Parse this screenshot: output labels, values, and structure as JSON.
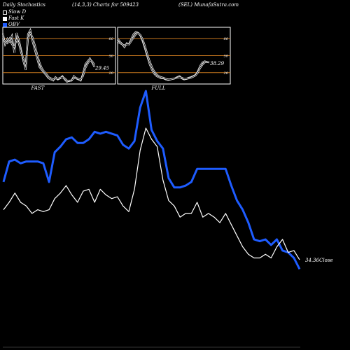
{
  "header": {
    "left": "Daily Stochastics",
    "params": "(14,3,3) Charts for 509423",
    "right": "(SEL) MunafaSutra.com"
  },
  "legend": [
    {
      "label": "Slow  D",
      "color": "#000000"
    },
    {
      "label": "Fast K",
      "color": "#ffffff"
    },
    {
      "label": "OBV",
      "color": "#1e5cff"
    }
  ],
  "chart_data": [
    {
      "type": "line",
      "title": "FAST",
      "last_value_label": "29.45",
      "ylim": [
        0,
        100
      ],
      "yticks": [
        20,
        50,
        80
      ],
      "series": [
        {
          "values": [
            90,
            70,
            80,
            75,
            85,
            55,
            90,
            78,
            60,
            40,
            25,
            88,
            95,
            75,
            60,
            45,
            30,
            25,
            20,
            15,
            10,
            8,
            6,
            12,
            8,
            10,
            14,
            8,
            4,
            6,
            6,
            14,
            10,
            8,
            6,
            18,
            35,
            40,
            45,
            38,
            30
          ]
        },
        {
          "values": [
            82,
            75,
            72,
            80,
            70,
            65,
            78,
            72,
            55,
            45,
            35,
            80,
            90,
            82,
            68,
            52,
            38,
            28,
            22,
            18,
            12,
            10,
            8,
            10,
            9,
            11,
            12,
            10,
            6,
            5,
            7,
            10,
            11,
            9,
            8,
            14,
            28,
            36,
            42,
            40,
            34
          ]
        }
      ]
    },
    {
      "type": "line",
      "title": "FULL",
      "last_value_label": "38.29",
      "ylim": [
        0,
        100
      ],
      "yticks": [
        20,
        50,
        80
      ],
      "series": [
        {
          "values": [
            80,
            75,
            70,
            65,
            72,
            70,
            80,
            88,
            92,
            90,
            85,
            75,
            62,
            48,
            35,
            25,
            18,
            14,
            12,
            10,
            10,
            8,
            7,
            8,
            9,
            10,
            12,
            14,
            10,
            8,
            9,
            11,
            12,
            14,
            16,
            22,
            32,
            38,
            40,
            39,
            38
          ]
        },
        {
          "values": [
            75,
            72,
            70,
            68,
            70,
            70,
            76,
            82,
            88,
            90,
            86,
            78,
            66,
            52,
            40,
            30,
            22,
            17,
            14,
            12,
            11,
            9,
            8,
            8,
            9,
            10,
            11,
            12,
            11,
            9,
            9,
            10,
            11,
            13,
            15,
            20,
            28,
            34,
            38,
            39,
            38
          ]
        }
      ]
    },
    {
      "type": "line",
      "ylim": [
        0,
        1
      ],
      "last_value_label": "34.36",
      "close_label": "Close",
      "series": [
        {
          "color": "#1e5cff",
          "values": [
            0.51,
            0.62,
            0.63,
            0.61,
            0.62,
            0.62,
            0.62,
            0.61,
            0.51,
            0.67,
            0.7,
            0.74,
            0.75,
            0.72,
            0.72,
            0.74,
            0.78,
            0.77,
            0.78,
            0.77,
            0.76,
            0.71,
            0.69,
            0.73,
            0.91,
            1.0,
            0.79,
            0.73,
            0.69,
            0.53,
            0.48,
            0.48,
            0.49,
            0.51,
            0.58,
            0.58,
            0.58,
            0.58,
            0.58,
            0.58,
            0.49,
            0.41,
            0.36,
            0.29,
            0.2,
            0.19,
            0.2,
            0.17,
            0.2,
            0.14,
            0.13,
            0.1,
            0.04
          ]
        },
        {
          "color": "#ffffff",
          "values": [
            0.36,
            0.4,
            0.45,
            0.4,
            0.38,
            0.34,
            0.36,
            0.35,
            0.36,
            0.42,
            0.45,
            0.49,
            0.44,
            0.4,
            0.46,
            0.47,
            0.4,
            0.47,
            0.44,
            0.42,
            0.43,
            0.38,
            0.35,
            0.47,
            0.68,
            0.8,
            0.74,
            0.7,
            0.52,
            0.41,
            0.38,
            0.32,
            0.34,
            0.34,
            0.4,
            0.32,
            0.34,
            0.32,
            0.29,
            0.34,
            0.28,
            0.22,
            0.16,
            0.12,
            0.1,
            0.1,
            0.12,
            0.1,
            0.16,
            0.2,
            0.13,
            0.14,
            0.09
          ]
        }
      ]
    }
  ]
}
